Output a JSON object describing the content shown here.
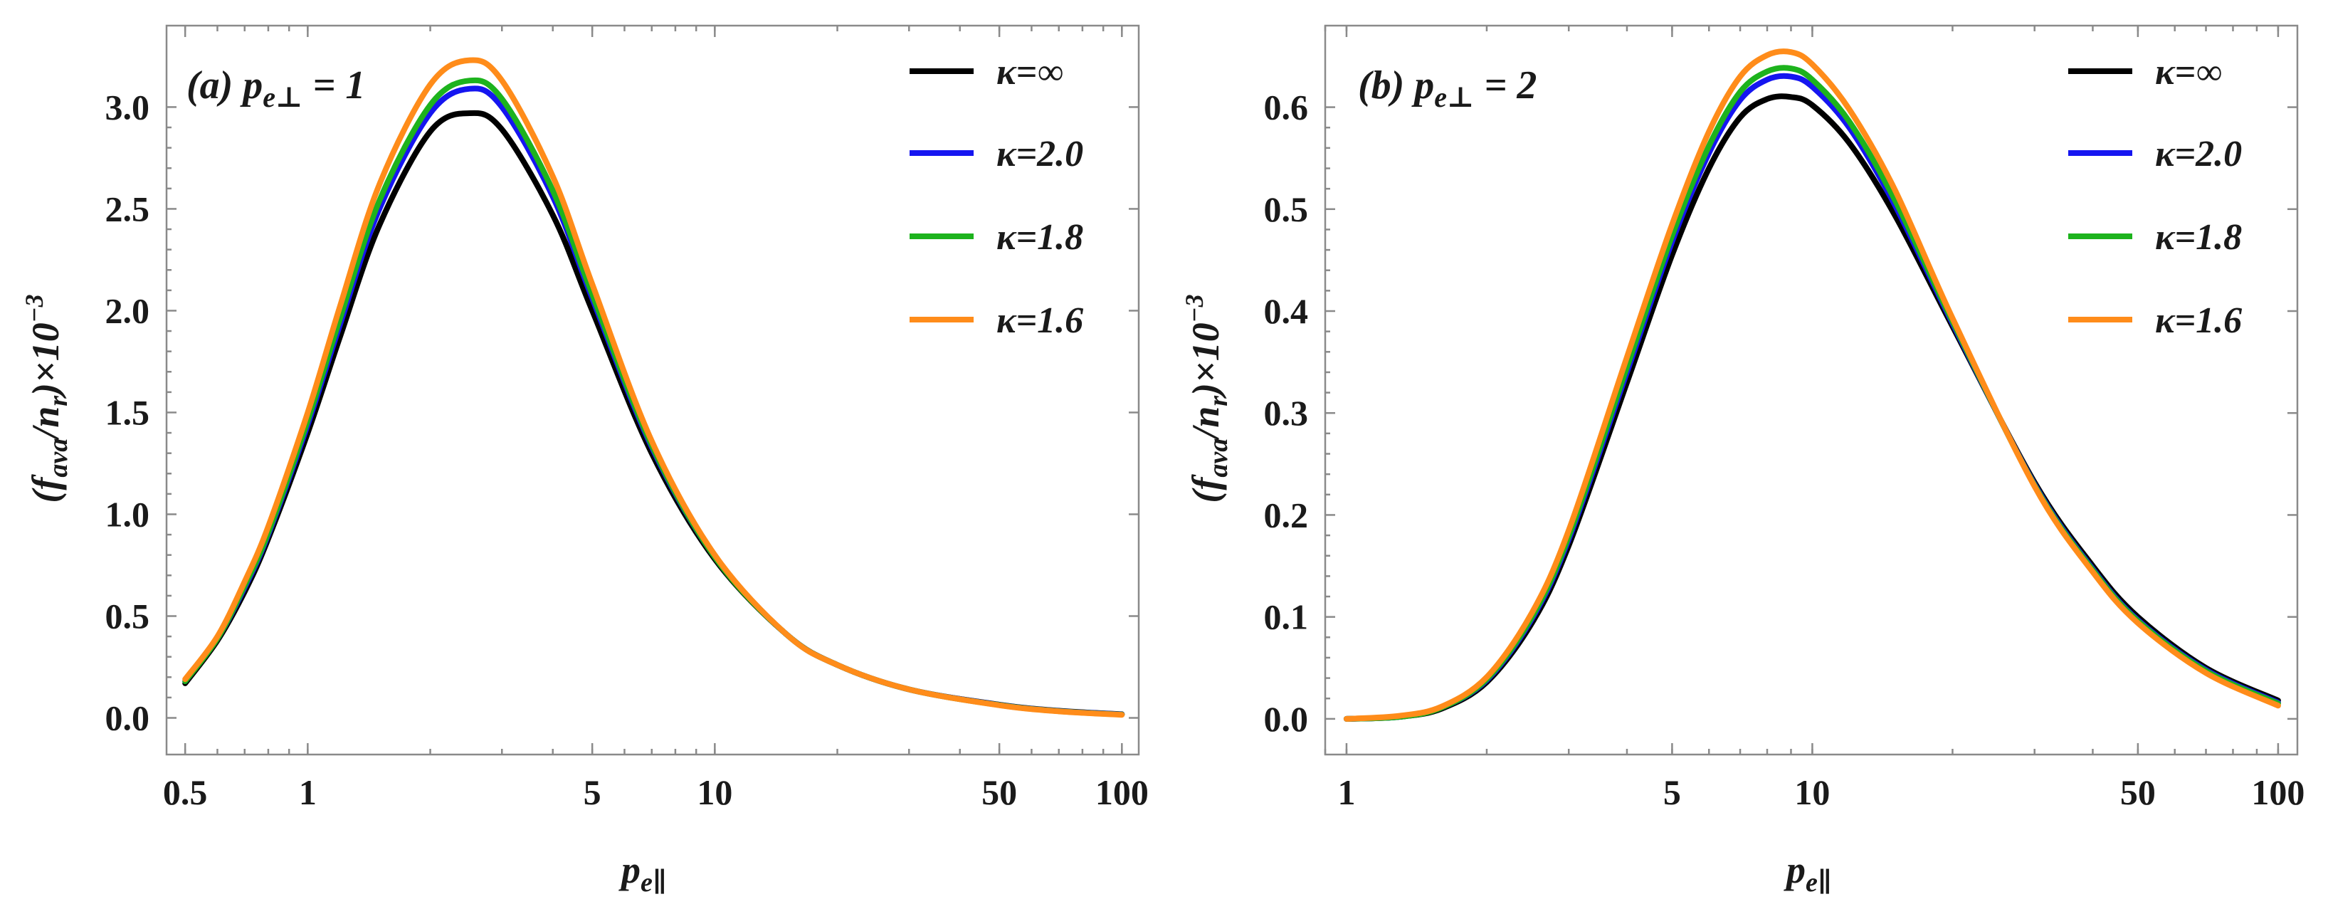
{
  "chart_data": [
    {
      "type": "line",
      "panel_label": "(a) p_{e⊥} = 1",
      "panel_label_parts": {
        "prefix": "(a) ",
        "symbol": "p",
        "subscript": "e⊥",
        "suffix": " = 1"
      },
      "xscale": "log",
      "xlabel": "p_{e∥}",
      "ylabel": "(f_ava/n_r)×10^-3",
      "xlim": [
        0.45,
        110
      ],
      "ylim": [
        -0.18,
        3.4
      ],
      "xticks": [
        0.5,
        1,
        5,
        10,
        50,
        100
      ],
      "xtick_labels": [
        "0.5",
        "1",
        "5",
        "10",
        "50",
        "100"
      ],
      "yticks": [
        0.0,
        0.5,
        1.0,
        1.5,
        2.0,
        2.5,
        3.0
      ],
      "ytick_labels": [
        "0.0",
        "0.5",
        "1.0",
        "1.5",
        "2.0",
        "2.5",
        "3.0"
      ],
      "legend_position": "top-right",
      "x": [
        0.5,
        0.6,
        0.7,
        0.8,
        1.0,
        1.2,
        1.5,
        2.0,
        2.5,
        3.0,
        4.0,
        5.0,
        7.0,
        10,
        15,
        20,
        30,
        50,
        70,
        100
      ],
      "series": [
        {
          "name": "κ=∞",
          "color": "#000000",
          "values": [
            0.17,
            0.38,
            0.62,
            0.88,
            1.4,
            1.87,
            2.42,
            2.88,
            2.97,
            2.89,
            2.47,
            2.0,
            1.3,
            0.78,
            0.41,
            0.26,
            0.14,
            0.065,
            0.035,
            0.018
          ]
        },
        {
          "name": "κ=2.0",
          "color": "#1515f0",
          "values": [
            0.18,
            0.39,
            0.64,
            0.9,
            1.44,
            1.93,
            2.5,
            2.97,
            3.09,
            3.0,
            2.56,
            2.06,
            1.33,
            0.79,
            0.41,
            0.26,
            0.14,
            0.064,
            0.034,
            0.017
          ]
        },
        {
          "name": "κ=1.8",
          "color": "#1db31d",
          "values": [
            0.18,
            0.39,
            0.65,
            0.91,
            1.46,
            1.96,
            2.54,
            3.01,
            3.13,
            3.04,
            2.59,
            2.08,
            1.34,
            0.79,
            0.41,
            0.26,
            0.14,
            0.063,
            0.033,
            0.016
          ]
        },
        {
          "name": "κ=1.6",
          "color": "#ff8c1a",
          "values": [
            0.19,
            0.4,
            0.67,
            0.94,
            1.5,
            2.02,
            2.62,
            3.11,
            3.23,
            3.13,
            2.66,
            2.13,
            1.36,
            0.8,
            0.41,
            0.26,
            0.14,
            0.062,
            0.032,
            0.015
          ]
        }
      ]
    },
    {
      "type": "line",
      "panel_label": "(b) p_{e⊥} = 2",
      "panel_label_parts": {
        "prefix": "(b) ",
        "symbol": "p",
        "subscript": "e⊥",
        "suffix": " = 2"
      },
      "xscale": "log",
      "xlabel": "p_{e∥}",
      "ylabel": "(f_ava/n_r)×10^-3",
      "xlim": [
        0.9,
        110
      ],
      "ylim": [
        -0.035,
        0.68
      ],
      "xticks": [
        1,
        5,
        10,
        50,
        100
      ],
      "xtick_labels": [
        "1",
        "5",
        "10",
        "50",
        "100"
      ],
      "yticks": [
        0.0,
        0.1,
        0.2,
        0.3,
        0.4,
        0.5,
        0.6
      ],
      "ytick_labels": [
        "0.0",
        "0.1",
        "0.2",
        "0.3",
        "0.4",
        "0.5",
        "0.6"
      ],
      "legend_position": "top-right",
      "x": [
        1.0,
        1.3,
        1.6,
        2.0,
        2.5,
        3.0,
        4.0,
        5.0,
        6.0,
        7.0,
        8.0,
        9.0,
        10,
        12,
        15,
        20,
        30,
        40,
        50,
        70,
        100
      ],
      "series": [
        {
          "name": "κ=∞",
          "color": "#000000",
          "values": [
            0.0,
            0.002,
            0.01,
            0.036,
            0.094,
            0.17,
            0.33,
            0.455,
            0.54,
            0.59,
            0.608,
            0.61,
            0.602,
            0.565,
            0.495,
            0.385,
            0.232,
            0.15,
            0.1,
            0.05,
            0.018
          ]
        },
        {
          "name": "κ=2.0",
          "color": "#1515f0",
          "values": [
            0.0,
            0.002,
            0.011,
            0.038,
            0.098,
            0.176,
            0.34,
            0.468,
            0.555,
            0.607,
            0.627,
            0.63,
            0.62,
            0.58,
            0.505,
            0.388,
            0.23,
            0.147,
            0.097,
            0.048,
            0.016
          ]
        },
        {
          "name": "κ=1.8",
          "color": "#1db31d",
          "values": [
            0.0,
            0.002,
            0.011,
            0.039,
            0.1,
            0.179,
            0.345,
            0.474,
            0.562,
            0.615,
            0.635,
            0.638,
            0.627,
            0.586,
            0.51,
            0.39,
            0.229,
            0.146,
            0.096,
            0.047,
            0.015
          ]
        },
        {
          "name": "κ=1.6",
          "color": "#ff8c1a",
          "values": [
            0.0,
            0.003,
            0.012,
            0.041,
            0.104,
            0.185,
            0.355,
            0.485,
            0.576,
            0.63,
            0.651,
            0.654,
            0.642,
            0.598,
            0.52,
            0.393,
            0.228,
            0.144,
            0.094,
            0.045,
            0.013
          ]
        }
      ]
    }
  ]
}
